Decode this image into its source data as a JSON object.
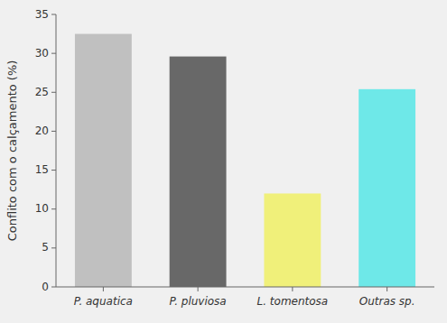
{
  "chart_data": {
    "type": "bar",
    "categories": [
      "P. aquatica",
      "P. pluviosa",
      "L. tomentosa",
      "Outras sp."
    ],
    "values": [
      32.5,
      29.6,
      12.0,
      25.4
    ],
    "colors": [
      "#c0c0c0",
      "#686868",
      "#f0f07a",
      "#6ee8e8"
    ],
    "ylabel": "Conflito com o calçamento (%)",
    "ylim": [
      0,
      35
    ],
    "yticks": [
      0,
      5,
      10,
      15,
      20,
      25,
      30,
      35
    ],
    "grid": false
  }
}
